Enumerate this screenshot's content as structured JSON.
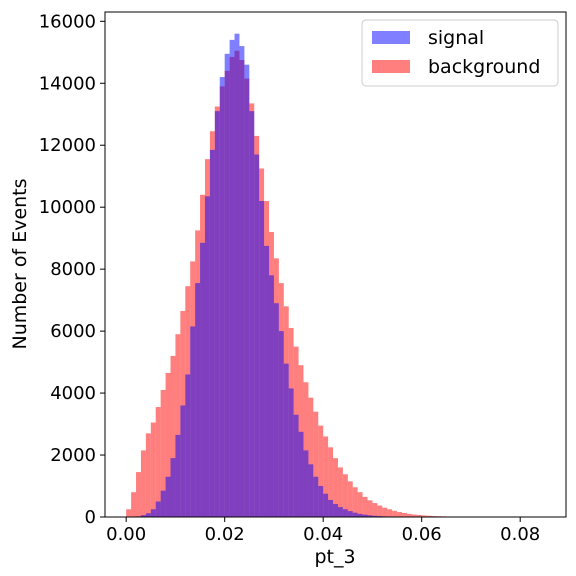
{
  "chart_data": {
    "type": "bar",
    "subtype": "overlaid-histogram",
    "title": "",
    "xlabel": "pt_3",
    "ylabel": "Number of Events",
    "xlim": [
      -0.0043,
      0.0893
    ],
    "ylim": [
      0,
      16300
    ],
    "xticks": [
      0.0,
      0.02,
      0.04,
      0.06,
      0.08
    ],
    "xtick_labels": [
      "0.00",
      "0.02",
      "0.04",
      "0.06",
      "0.08"
    ],
    "yticks": [
      0,
      2000,
      4000,
      6000,
      8000,
      10000,
      12000,
      14000,
      16000
    ],
    "ytick_labels": [
      "0",
      "2000",
      "4000",
      "6000",
      "8000",
      "10000",
      "12000",
      "14000",
      "16000"
    ],
    "grid": false,
    "legend_placement": "top-right",
    "bin_width": 0.001,
    "series": [
      {
        "name": "signal",
        "color": "#0000ff",
        "alpha": 0.5,
        "bin_starts": [
          0.002,
          0.003,
          0.004,
          0.005,
          0.006,
          0.007,
          0.008,
          0.009,
          0.01,
          0.011,
          0.012,
          0.013,
          0.014,
          0.015,
          0.016,
          0.017,
          0.018,
          0.019,
          0.02,
          0.021,
          0.022,
          0.023,
          0.024,
          0.025,
          0.026,
          0.027,
          0.028,
          0.029,
          0.03,
          0.031,
          0.032,
          0.033,
          0.034,
          0.035,
          0.036,
          0.037,
          0.038,
          0.039,
          0.04,
          0.041,
          0.042,
          0.043,
          0.044,
          0.045,
          0.046,
          0.047,
          0.048,
          0.049,
          0.05,
          0.051,
          0.052,
          0.053,
          0.054,
          0.055,
          0.056,
          0.057,
          0.058,
          0.059,
          0.06
        ],
        "values": [
          20,
          60,
          120,
          250,
          500,
          850,
          1300,
          1900,
          2650,
          3600,
          4600,
          6150,
          7550,
          8850,
          10350,
          11850,
          13100,
          14200,
          14950,
          15400,
          15600,
          15200,
          14600,
          13100,
          11700,
          10200,
          8750,
          7800,
          6900,
          6000,
          4950,
          4150,
          3300,
          2750,
          2150,
          1700,
          1300,
          1000,
          750,
          550,
          420,
          320,
          250,
          190,
          140,
          100,
          75,
          55,
          40,
          30,
          20,
          14,
          10,
          7,
          5,
          4,
          3,
          2,
          1
        ]
      },
      {
        "name": "background",
        "color": "#ff0000",
        "alpha": 0.5,
        "bin_starts": [
          0.0,
          0.001,
          0.002,
          0.003,
          0.004,
          0.005,
          0.006,
          0.007,
          0.008,
          0.009,
          0.01,
          0.011,
          0.012,
          0.013,
          0.014,
          0.015,
          0.016,
          0.017,
          0.018,
          0.019,
          0.02,
          0.021,
          0.022,
          0.023,
          0.024,
          0.025,
          0.026,
          0.027,
          0.028,
          0.029,
          0.03,
          0.031,
          0.032,
          0.033,
          0.034,
          0.035,
          0.036,
          0.037,
          0.038,
          0.039,
          0.04,
          0.041,
          0.042,
          0.043,
          0.044,
          0.045,
          0.046,
          0.047,
          0.048,
          0.049,
          0.05,
          0.051,
          0.052,
          0.053,
          0.054,
          0.055,
          0.056,
          0.057,
          0.058,
          0.059,
          0.06,
          0.061,
          0.062,
          0.063,
          0.064,
          0.065,
          0.066,
          0.067,
          0.068,
          0.069,
          0.07,
          0.071,
          0.072,
          0.073,
          0.074
        ],
        "values": [
          250,
          800,
          1450,
          2150,
          2700,
          3050,
          3550,
          4100,
          4650,
          5200,
          5900,
          6650,
          7450,
          8250,
          9250,
          10400,
          11550,
          12450,
          13250,
          13900,
          14400,
          14850,
          15050,
          14750,
          14150,
          13350,
          12300,
          11250,
          10200,
          9200,
          8350,
          7550,
          6800,
          6100,
          5500,
          4900,
          4350,
          3850,
          3400,
          2950,
          2600,
          2250,
          1900,
          1600,
          1380,
          1150,
          960,
          800,
          650,
          540,
          450,
          370,
          300,
          250,
          200,
          160,
          130,
          100,
          80,
          65,
          50,
          40,
          30,
          25,
          20,
          15,
          12,
          9,
          7,
          5,
          4,
          3,
          2,
          1,
          1
        ]
      }
    ]
  }
}
